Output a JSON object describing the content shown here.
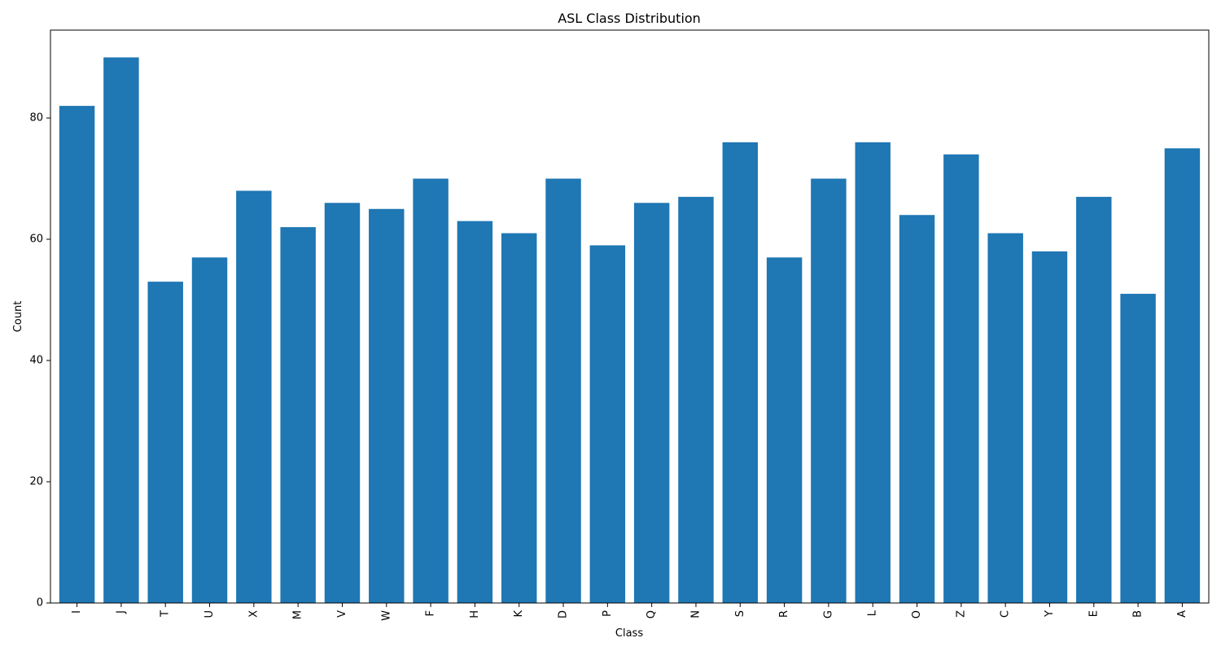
{
  "chart_data": {
    "type": "bar",
    "title": "ASL Class Distribution",
    "xlabel": "Class",
    "ylabel": "Count",
    "categories": [
      "I",
      "J",
      "T",
      "U",
      "X",
      "M",
      "V",
      "W",
      "F",
      "H",
      "K",
      "D",
      "P",
      "Q",
      "N",
      "S",
      "R",
      "G",
      "L",
      "O",
      "Z",
      "C",
      "Y",
      "E",
      "B",
      "A"
    ],
    "values": [
      82,
      90,
      53,
      57,
      68,
      62,
      66,
      65,
      70,
      63,
      61,
      70,
      59,
      66,
      67,
      76,
      57,
      70,
      76,
      64,
      74,
      61,
      58,
      67,
      51,
      75
    ],
    "ylim": [
      0,
      94.5
    ],
    "yticks": [
      0,
      20,
      40,
      60,
      80
    ],
    "bar_color": "#1f77b4",
    "grid": false,
    "legend": "none",
    "xtick_rotation": "vertical"
  }
}
